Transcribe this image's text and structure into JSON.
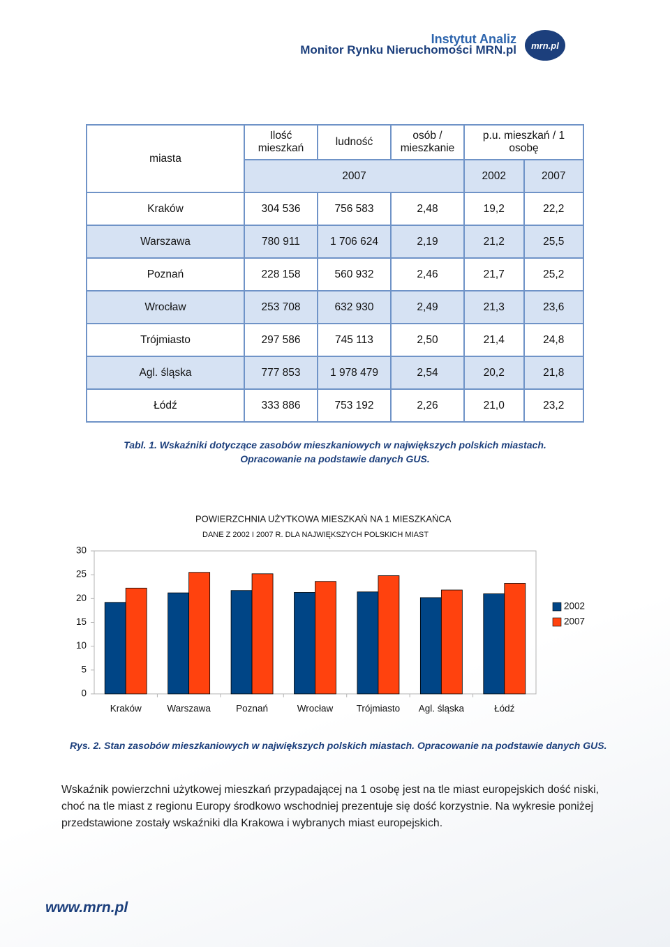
{
  "header": {
    "line1": "Instytut Analiz",
    "line2": "Monitor Rynku Nieruchomości MRN.pl",
    "logo": "mrn.pl"
  },
  "table": {
    "header": [
      [
        "miasta",
        "Ilość mieszkań",
        "ludność",
        "osób / mieszkanie",
        "p.u. mieszkań / 1 osobę"
      ],
      [
        "2007",
        "2002",
        "2007"
      ]
    ],
    "rows": [
      [
        "Kraków",
        "304 536",
        "756 583",
        "2,48",
        "19,2",
        "22,2"
      ],
      [
        "Warszawa",
        "780 911",
        "1 706 624",
        "2,19",
        "21,2",
        "25,5"
      ],
      [
        "Poznań",
        "228 158",
        "560 932",
        "2,46",
        "21,7",
        "25,2"
      ],
      [
        "Wrocław",
        "253 708",
        "632 930",
        "2,49",
        "21,3",
        "23,6"
      ],
      [
        "Trójmiasto",
        "297 586",
        "745 113",
        "2,50",
        "21,4",
        "24,8"
      ],
      [
        "Agl. śląska",
        "777 853",
        "1 978 479",
        "2,54",
        "20,2",
        "21,8"
      ],
      [
        "Łódź",
        "333 886",
        "753 192",
        "2,26",
        "21,0",
        "23,2"
      ]
    ]
  },
  "table_caption": [
    "Tabl. 1. Wskaźniki dotyczące zasobów mieszkaniowych w największych polskich miastach.",
    "Opracowanie na podstawie danych GUS."
  ],
  "chart_data": {
    "type": "bar",
    "title": "POWIERZCHNIA UŻYTKOWA MIESZKAŃ NA 1 MIESZKAŃCA",
    "subtitle": "DANE Z 2002 I 2007 R. DLA NAJWIĘKSZYCH POLSKICH MIAST",
    "categories": [
      "Kraków",
      "Warszawa",
      "Poznań",
      "Wrocław",
      "Trójmiasto",
      "Agl. śląska",
      "Łódź"
    ],
    "series": [
      {
        "name": "2002",
        "color": "#004586",
        "values": [
          19.2,
          21.2,
          21.7,
          21.3,
          21.4,
          20.2,
          21.0
        ]
      },
      {
        "name": "2007",
        "color": "#ff420e",
        "values": [
          22.2,
          25.5,
          25.2,
          23.6,
          24.8,
          21.8,
          23.2
        ]
      }
    ],
    "ylim": [
      0,
      30
    ],
    "yticks": [
      0,
      5,
      10,
      15,
      20,
      25,
      30
    ],
    "legend": "right"
  },
  "chart_caption": "Rys. 2. Stan zasobów mieszkaniowych w największych polskich miastach. Opracowanie na podstawie danych GUS.",
  "paragraph": "Wskaźnik powierzchni użytkowej mieszkań przypadającej na 1 osobę jest na tle miast europejskich dość niski, choć na tle miast z regionu Europy środkowo wschodniej prezentuje się dość korzystnie. Na wykresie poniżej przedstawione zostały wskaźniki dla Krakowa i wybranych miast europejskich.",
  "footer": "www.mrn.pl"
}
